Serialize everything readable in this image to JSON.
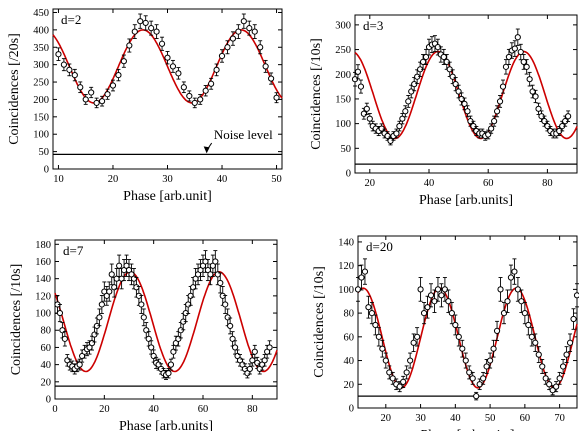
{
  "chart_data": [
    {
      "type": "scatter",
      "panel_label": "d=2",
      "xlabel": "Phase [arb.unit]",
      "ylabel": "Coincidences [/20s]",
      "xlim": [
        9,
        51
      ],
      "ylim": [
        0,
        460
      ],
      "xticks": [
        10,
        20,
        30,
        40,
        50
      ],
      "yticks": [
        0,
        50,
        100,
        150,
        200,
        250,
        300,
        350,
        400,
        450
      ],
      "fit": {
        "name": "",
        "mean": 295,
        "amplitude": 105,
        "period": 18,
        "peak_x": 25.5,
        "color": "#cc0000"
      },
      "noise_level": 42,
      "annotation": {
        "text": "Noise level",
        "arrow_to_x": 37,
        "label_x": 38.5,
        "label_y": 86
      },
      "points": [
        [
          10,
          330
        ],
        [
          11,
          300
        ],
        [
          12,
          285
        ],
        [
          13,
          270
        ],
        [
          14,
          235
        ],
        [
          15,
          200
        ],
        [
          16,
          220
        ],
        [
          17,
          190
        ],
        [
          18,
          195
        ],
        [
          19,
          215
        ],
        [
          20,
          240
        ],
        [
          21,
          270
        ],
        [
          22,
          310
        ],
        [
          23,
          355
        ],
        [
          24,
          395
        ],
        [
          25,
          425
        ],
        [
          26,
          420
        ],
        [
          27,
          405
        ],
        [
          28,
          395
        ],
        [
          29,
          360
        ],
        [
          30,
          320
        ],
        [
          31,
          295
        ],
        [
          32,
          275
        ],
        [
          33,
          235
        ],
        [
          34,
          210
        ],
        [
          35,
          190
        ],
        [
          36,
          200
        ],
        [
          37,
          225
        ],
        [
          38,
          245
        ],
        [
          39,
          285
        ],
        [
          40,
          325
        ],
        [
          41,
          350
        ],
        [
          42,
          375
        ],
        [
          43,
          395
        ],
        [
          44,
          425
        ],
        [
          45,
          405
        ],
        [
          46,
          395
        ],
        [
          47,
          350
        ],
        [
          48,
          295
        ],
        [
          49,
          260
        ],
        [
          50,
          205
        ]
      ]
    },
    {
      "type": "scatter",
      "panel_label": "d=3",
      "xlabel": "Phase [arb.units]",
      "ylabel": "Coincidences [/10s]",
      "xlim": [
        15,
        90
      ],
      "ylim": [
        0,
        320
      ],
      "xticks": [
        20,
        40,
        60,
        80
      ],
      "yticks": [
        0,
        50,
        100,
        150,
        200,
        250,
        300
      ],
      "fit": {
        "name": "",
        "mean": 158,
        "amplitude": 88,
        "period": 29,
        "peak_x": 43,
        "color": "#cc0000"
      },
      "noise_level": 18,
      "points": [
        [
          15,
          190
        ],
        [
          16,
          205
        ],
        [
          17,
          175
        ],
        [
          18,
          120
        ],
        [
          19,
          130
        ],
        [
          20,
          110
        ],
        [
          21,
          95
        ],
        [
          22,
          90
        ],
        [
          23,
          85
        ],
        [
          24,
          90
        ],
        [
          25,
          80
        ],
        [
          26,
          75
        ],
        [
          27,
          65
        ],
        [
          28,
          75
        ],
        [
          29,
          80
        ],
        [
          30,
          95
        ],
        [
          31,
          110
        ],
        [
          32,
          125
        ],
        [
          33,
          145
        ],
        [
          34,
          165
        ],
        [
          35,
          180
        ],
        [
          36,
          195
        ],
        [
          37,
          210
        ],
        [
          38,
          225
        ],
        [
          39,
          235
        ],
        [
          40,
          255
        ],
        [
          41,
          260
        ],
        [
          42,
          262
        ],
        [
          43,
          255
        ],
        [
          44,
          240
        ],
        [
          45,
          235
        ],
        [
          46,
          225
        ],
        [
          47,
          210
        ],
        [
          48,
          195
        ],
        [
          49,
          180
        ],
        [
          50,
          165
        ],
        [
          51,
          150
        ],
        [
          52,
          140
        ],
        [
          53,
          125
        ],
        [
          54,
          105
        ],
        [
          55,
          95
        ],
        [
          56,
          85
        ],
        [
          57,
          80
        ],
        [
          58,
          80
        ],
        [
          59,
          75
        ],
        [
          60,
          78
        ],
        [
          61,
          90
        ],
        [
          62,
          105
        ],
        [
          63,
          125
        ],
        [
          64,
          145
        ],
        [
          65,
          175
        ],
        [
          66,
          215
        ],
        [
          67,
          235
        ],
        [
          68,
          248
        ],
        [
          69,
          252
        ],
        [
          70,
          275
        ],
        [
          71,
          245
        ],
        [
          72,
          225
        ],
        [
          73,
          215
        ],
        [
          74,
          190
        ],
        [
          75,
          165
        ],
        [
          76,
          155
        ],
        [
          77,
          130
        ],
        [
          78,
          115
        ],
        [
          79,
          105
        ],
        [
          80,
          95
        ],
        [
          81,
          85
        ],
        [
          82,
          80
        ],
        [
          83,
          80
        ],
        [
          84,
          85
        ],
        [
          85,
          95
        ],
        [
          86,
          105
        ],
        [
          87,
          115
        ]
      ]
    },
    {
      "type": "scatter",
      "panel_label": "d=7",
      "xlabel": "Phase [arb.units]",
      "ylabel": "Coincidences [/10s]",
      "xlim": [
        0,
        90
      ],
      "ylim": [
        0,
        185
      ],
      "xticks": [
        0,
        20,
        40,
        60,
        80
      ],
      "yticks": [
        0,
        20,
        40,
        60,
        80,
        100,
        120,
        140,
        160,
        180
      ],
      "fit": {
        "name": "",
        "mean": 90,
        "amplitude": 58,
        "period": 36,
        "peak_x": 30.5,
        "color": "#cc0000"
      },
      "noise_level": 15,
      "points": [
        [
          1,
          110
        ],
        [
          2,
          100
        ],
        [
          3,
          80
        ],
        [
          4,
          70
        ],
        [
          5,
          45
        ],
        [
          6,
          40
        ],
        [
          7,
          38
        ],
        [
          8,
          35
        ],
        [
          9,
          38
        ],
        [
          10,
          40
        ],
        [
          11,
          50
        ],
        [
          12,
          55
        ],
        [
          13,
          58
        ],
        [
          14,
          60
        ],
        [
          15,
          65
        ],
        [
          16,
          75
        ],
        [
          17,
          85
        ],
        [
          18,
          95
        ],
        [
          19,
          110
        ],
        [
          20,
          125
        ],
        [
          21,
          120
        ],
        [
          22,
          125
        ],
        [
          23,
          145
        ],
        [
          24,
          130
        ],
        [
          25,
          140
        ],
        [
          26,
          155
        ],
        [
          27,
          140
        ],
        [
          28,
          150
        ],
        [
          29,
          155
        ],
        [
          30,
          150
        ],
        [
          31,
          145
        ],
        [
          32,
          140
        ],
        [
          33,
          130
        ],
        [
          34,
          120
        ],
        [
          35,
          110
        ],
        [
          36,
          95
        ],
        [
          37,
          80
        ],
        [
          38,
          70
        ],
        [
          39,
          60
        ],
        [
          40,
          50
        ],
        [
          41,
          42
        ],
        [
          42,
          40
        ],
        [
          43,
          35
        ],
        [
          44,
          30
        ],
        [
          45,
          28
        ],
        [
          46,
          30
        ],
        [
          47,
          40
        ],
        [
          48,
          55
        ],
        [
          49,
          65
        ],
        [
          50,
          70
        ],
        [
          51,
          80
        ],
        [
          52,
          90
        ],
        [
          53,
          100
        ],
        [
          54,
          110
        ],
        [
          55,
          120
        ],
        [
          56,
          130
        ],
        [
          57,
          140
        ],
        [
          58,
          145
        ],
        [
          59,
          150
        ],
        [
          60,
          155
        ],
        [
          61,
          160
        ],
        [
          62,
          150
        ],
        [
          63,
          145
        ],
        [
          64,
          155
        ],
        [
          65,
          160
        ],
        [
          66,
          145
        ],
        [
          67,
          135
        ],
        [
          68,
          120
        ],
        [
          69,
          110
        ],
        [
          70,
          95
        ],
        [
          71,
          85
        ],
        [
          72,
          70
        ],
        [
          73,
          60
        ],
        [
          74,
          50
        ],
        [
          75,
          45
        ],
        [
          76,
          40
        ],
        [
          77,
          35
        ],
        [
          78,
          30
        ],
        [
          79,
          35
        ],
        [
          80,
          45
        ],
        [
          81,
          55
        ],
        [
          82,
          42
        ],
        [
          83,
          35
        ],
        [
          84,
          40
        ],
        [
          85,
          45
        ],
        [
          86,
          55
        ],
        [
          87,
          60
        ]
      ]
    },
    {
      "type": "scatter",
      "panel_label": "d=20",
      "xlabel": "Phase [arb.units]",
      "ylabel": "Coincidences [/10s]",
      "xlim": [
        12,
        75
      ],
      "ylim": [
        0,
        145
      ],
      "xticks": [
        20,
        30,
        40,
        50,
        60,
        70
      ],
      "yticks": [
        0,
        20,
        40,
        60,
        80,
        100,
        120,
        140
      ],
      "fit": {
        "name": "",
        "mean": 59,
        "amplitude": 42,
        "period": 22,
        "peak_x": 35.5,
        "color": "#cc0000"
      },
      "noise_level": 10,
      "points": [
        [
          12,
          100
        ],
        [
          13,
          110
        ],
        [
          14,
          115
        ],
        [
          15,
          85
        ],
        [
          16,
          80
        ],
        [
          17,
          70
        ],
        [
          18,
          60
        ],
        [
          19,
          50
        ],
        [
          20,
          40
        ],
        [
          21,
          30
        ],
        [
          22,
          25
        ],
        [
          23,
          20
        ],
        [
          24,
          18
        ],
        [
          25,
          22
        ],
        [
          26,
          30
        ],
        [
          27,
          40
        ],
        [
          28,
          55
        ],
        [
          29,
          60
        ],
        [
          30,
          100
        ],
        [
          31,
          80
        ],
        [
          32,
          85
        ],
        [
          33,
          95
        ],
        [
          34,
          90
        ],
        [
          35,
          100
        ],
        [
          36,
          95
        ],
        [
          37,
          100
        ],
        [
          38,
          90
        ],
        [
          39,
          80
        ],
        [
          40,
          70
        ],
        [
          41,
          60
        ],
        [
          42,
          50
        ],
        [
          43,
          40
        ],
        [
          44,
          30
        ],
        [
          45,
          25
        ],
        [
          46,
          10
        ],
        [
          47,
          20
        ],
        [
          48,
          25
        ],
        [
          49,
          35
        ],
        [
          50,
          40
        ],
        [
          51,
          50
        ],
        [
          52,
          65
        ],
        [
          53,
          100
        ],
        [
          54,
          80
        ],
        [
          55,
          90
        ],
        [
          56,
          110
        ],
        [
          57,
          115
        ],
        [
          58,
          100
        ],
        [
          59,
          90
        ],
        [
          60,
          80
        ],
        [
          61,
          70
        ],
        [
          62,
          60
        ],
        [
          63,
          55
        ],
        [
          64,
          45
        ],
        [
          65,
          35
        ],
        [
          66,
          25
        ],
        [
          67,
          20
        ],
        [
          68,
          15
        ],
        [
          69,
          18
        ],
        [
          70,
          25
        ],
        [
          71,
          35
        ],
        [
          72,
          45
        ],
        [
          73,
          55
        ],
        [
          74,
          75
        ],
        [
          75,
          95
        ]
      ]
    }
  ]
}
